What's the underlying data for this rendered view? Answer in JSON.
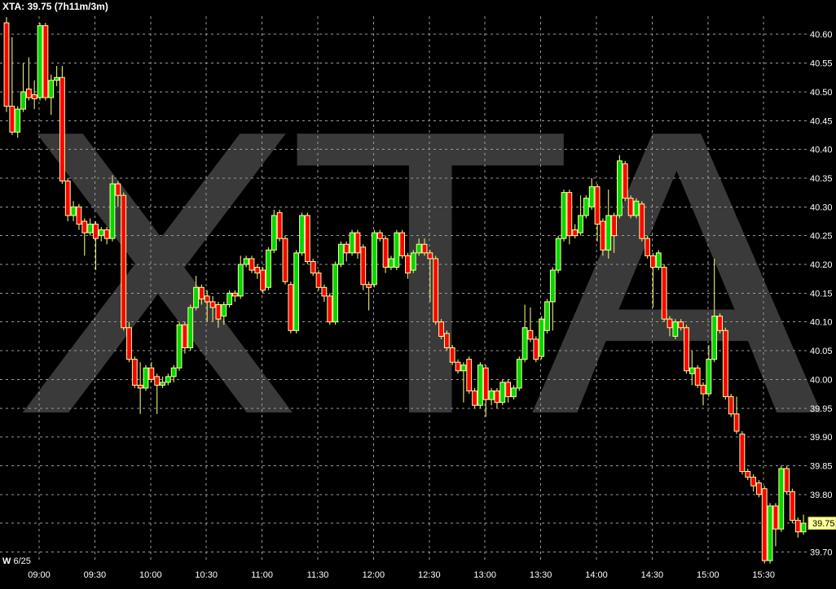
{
  "header": {
    "title": "XTA: 39.75 (7h11m/3m)"
  },
  "footer": {
    "week_label": "W",
    "date_label": "6/25"
  },
  "colors": {
    "background": "#000000",
    "grid": "#9b9b9b",
    "watermark": "#3a3a3a",
    "candle_up": "#00d800",
    "candle_down": "#ff0000",
    "candle_outline": "#ffffa0",
    "wick": "#dcdc6a",
    "axis_text": "#ffffff",
    "price_label_bg": "#ffff9c",
    "price_label_border": "#c8c850",
    "price_label_text": "#000000"
  },
  "chart_data": {
    "type": "candlestick",
    "symbol": "XTA",
    "last_price": "39.75",
    "timeframe": "7h11m/3m",
    "watermark": "XTA",
    "grid": true,
    "legend_position": "none",
    "y_axis": {
      "min": 39.7,
      "max": 40.6,
      "step": 0.05,
      "labels": [
        "40.60",
        "40.55",
        "40.50",
        "40.45",
        "40.40",
        "40.35",
        "40.30",
        "40.25",
        "40.20",
        "40.15",
        "40.10",
        "40.05",
        "40.00",
        "39.95",
        "39.90",
        "39.85",
        "39.80",
        "39.75",
        "39.70"
      ],
      "highlighted_label": "39.75"
    },
    "x_axis": {
      "labels": [
        "09:00",
        "09:30",
        "10:00",
        "10:30",
        "11:00",
        "11:30",
        "12:00",
        "12:30",
        "13:00",
        "13:30",
        "14:00",
        "14:30",
        "15:00",
        "15:30"
      ]
    },
    "candles": [
      [
        40.62,
        40.63,
        40.465,
        40.475
      ],
      [
        40.475,
        40.595,
        40.425,
        40.43
      ],
      [
        40.43,
        40.475,
        40.42,
        40.47
      ],
      [
        40.47,
        40.55,
        40.465,
        40.5
      ],
      [
        40.505,
        40.56,
        40.485,
        40.49
      ],
      [
        40.495,
        40.52,
        40.47,
        40.488
      ],
      [
        40.49,
        40.62,
        40.485,
        40.615
      ],
      [
        40.615,
        40.62,
        40.485,
        40.49
      ],
      [
        40.49,
        40.53,
        40.46,
        40.52
      ],
      [
        40.52,
        40.545,
        40.51,
        40.525
      ],
      [
        40.525,
        40.545,
        40.34,
        40.345
      ],
      [
        40.345,
        40.35,
        40.275,
        40.285
      ],
      [
        40.285,
        40.31,
        40.275,
        40.3
      ],
      [
        40.3,
        40.305,
        40.26,
        40.27
      ],
      [
        40.275,
        40.28,
        40.215,
        40.255
      ],
      [
        40.255,
        40.28,
        40.25,
        40.27
      ],
      [
        40.27,
        40.275,
        40.19,
        40.245
      ],
      [
        40.25,
        40.265,
        40.24,
        40.26
      ],
      [
        40.26,
        40.265,
        40.235,
        40.245
      ],
      [
        40.245,
        40.355,
        40.24,
        40.34
      ],
      [
        40.34,
        40.345,
        40.3,
        40.32
      ],
      [
        40.32,
        40.325,
        40.085,
        40.09
      ],
      [
        40.09,
        40.1,
        40.03,
        40.035
      ],
      [
        40.035,
        40.04,
        39.985,
        39.99
      ],
      [
        39.99,
        40.03,
        39.94,
        39.985
      ],
      [
        39.985,
        40.025,
        39.98,
        40.02
      ],
      [
        40.02,
        40.03,
        39.995,
        40.0
      ],
      [
        40.005,
        40.01,
        39.94,
        39.99
      ],
      [
        39.99,
        40.005,
        39.985,
        39.995
      ],
      [
        39.995,
        40.01,
        39.99,
        40.005
      ],
      [
        40.005,
        40.025,
        39.995,
        40.02
      ],
      [
        40.02,
        40.1,
        40.015,
        40.095
      ],
      [
        40.095,
        40.1,
        40.045,
        40.055
      ],
      [
        40.055,
        40.13,
        40.05,
        40.125
      ],
      [
        40.125,
        40.18,
        40.12,
        40.16
      ],
      [
        40.16,
        40.165,
        40.13,
        40.14
      ],
      [
        40.145,
        40.155,
        40.1,
        40.135
      ],
      [
        40.135,
        40.145,
        40.1,
        40.125
      ],
      [
        40.13,
        40.135,
        40.09,
        40.105
      ],
      [
        40.11,
        40.135,
        40.095,
        40.13
      ],
      [
        40.13,
        40.155,
        40.125,
        40.15
      ],
      [
        40.15,
        40.155,
        40.135,
        40.145
      ],
      [
        40.145,
        40.215,
        40.14,
        40.2
      ],
      [
        40.2,
        40.215,
        40.195,
        40.21
      ],
      [
        40.21,
        40.215,
        40.185,
        40.19
      ],
      [
        40.195,
        40.2,
        40.175,
        40.185
      ],
      [
        40.19,
        40.195,
        40.15,
        40.155
      ],
      [
        40.16,
        40.23,
        40.155,
        40.225
      ],
      [
        40.225,
        40.295,
        40.22,
        40.285
      ],
      [
        40.29,
        40.295,
        40.24,
        40.245
      ],
      [
        40.245,
        40.25,
        40.165,
        40.17
      ],
      [
        40.165,
        40.17,
        40.08,
        40.085
      ],
      [
        40.085,
        40.225,
        40.08,
        40.22
      ],
      [
        40.22,
        40.29,
        40.215,
        40.285
      ],
      [
        40.285,
        40.29,
        40.2,
        40.205
      ],
      [
        40.205,
        40.21,
        40.18,
        40.185
      ],
      [
        40.185,
        40.19,
        40.155,
        40.16
      ],
      [
        40.16,
        40.165,
        40.135,
        40.145
      ],
      [
        40.145,
        40.15,
        40.095,
        40.1
      ],
      [
        40.1,
        40.205,
        40.095,
        40.2
      ],
      [
        40.2,
        40.24,
        40.195,
        40.235
      ],
      [
        40.235,
        40.24,
        40.205,
        40.22
      ],
      [
        40.22,
        40.26,
        40.215,
        40.255
      ],
      [
        40.255,
        40.26,
        40.21,
        40.22
      ],
      [
        40.23,
        40.235,
        40.155,
        40.165
      ],
      [
        40.165,
        40.17,
        40.12,
        40.16
      ],
      [
        40.165,
        40.26,
        40.16,
        40.255
      ],
      [
        40.255,
        40.26,
        40.24,
        40.245
      ],
      [
        40.245,
        40.25,
        40.185,
        40.195
      ],
      [
        40.195,
        40.215,
        40.19,
        40.21
      ],
      [
        40.195,
        40.26,
        40.19,
        40.255
      ],
      [
        40.255,
        40.26,
        40.21,
        40.215
      ],
      [
        40.215,
        40.22,
        40.175,
        40.185
      ],
      [
        40.19,
        40.225,
        40.185,
        40.22
      ],
      [
        40.22,
        40.245,
        40.215,
        40.235
      ],
      [
        40.235,
        40.245,
        40.215,
        40.22
      ],
      [
        40.22,
        40.225,
        40.135,
        40.21
      ],
      [
        40.21,
        40.215,
        40.095,
        40.1
      ],
      [
        40.1,
        40.105,
        40.07,
        40.075
      ],
      [
        40.08,
        40.085,
        40.05,
        40.055
      ],
      [
        40.055,
        40.06,
        40.025,
        40.03
      ],
      [
        40.03,
        40.035,
        40.01,
        40.015
      ],
      [
        40.015,
        40.03,
        39.96,
        40.025
      ],
      [
        40.035,
        40.04,
        39.975,
        39.98
      ],
      [
        39.98,
        39.985,
        39.95,
        39.955
      ],
      [
        39.955,
        40.03,
        39.95,
        40.025
      ],
      [
        40.02,
        40.025,
        39.935,
        39.965
      ],
      [
        39.965,
        39.985,
        39.955,
        39.98
      ],
      [
        39.98,
        39.985,
        39.95,
        39.96
      ],
      [
        39.96,
        40.0,
        39.955,
        39.995
      ],
      [
        39.995,
        40.0,
        39.96,
        39.97
      ],
      [
        39.97,
        39.99,
        39.965,
        39.985
      ],
      [
        39.985,
        40.04,
        39.98,
        40.035
      ],
      [
        40.035,
        40.13,
        40.03,
        40.09
      ],
      [
        40.085,
        40.125,
        40.065,
        40.07
      ],
      [
        40.07,
        40.075,
        40.03,
        40.035
      ],
      [
        40.04,
        40.11,
        40.035,
        40.105
      ],
      [
        40.085,
        40.14,
        40.08,
        40.135
      ],
      [
        40.135,
        40.195,
        40.085,
        40.19
      ],
      [
        40.19,
        40.25,
        40.185,
        40.245
      ],
      [
        40.245,
        40.33,
        40.24,
        40.325
      ],
      [
        40.325,
        40.33,
        40.235,
        40.25
      ],
      [
        40.26,
        40.27,
        40.245,
        40.25
      ],
      [
        40.255,
        40.32,
        40.25,
        40.285
      ],
      [
        40.285,
        40.32,
        40.28,
        40.315
      ],
      [
        40.3,
        40.35,
        40.295,
        40.335
      ],
      [
        40.335,
        40.34,
        40.24,
        40.27
      ],
      [
        40.275,
        40.28,
        40.215,
        40.225
      ],
      [
        40.225,
        40.33,
        40.21,
        40.285
      ],
      [
        40.285,
        40.29,
        40.22,
        40.25
      ],
      [
        40.285,
        40.39,
        40.28,
        40.38
      ],
      [
        40.375,
        40.38,
        40.31,
        40.315
      ],
      [
        40.315,
        40.32,
        40.28,
        40.285
      ],
      [
        40.285,
        40.315,
        40.28,
        40.31
      ],
      [
        40.305,
        40.31,
        40.24,
        40.245
      ],
      [
        40.245,
        40.25,
        40.21,
        40.215
      ],
      [
        40.215,
        40.22,
        40.125,
        40.195
      ],
      [
        40.195,
        40.225,
        40.19,
        40.22
      ],
      [
        40.195,
        40.2,
        40.1,
        40.105
      ],
      [
        40.105,
        40.11,
        40.075,
        40.09
      ],
      [
        40.075,
        40.105,
        40.07,
        40.1
      ],
      [
        40.1,
        40.105,
        40.085,
        40.09
      ],
      [
        40.09,
        40.095,
        40.01,
        40.015
      ],
      [
        40.01,
        40.05,
        39.99,
        40.02
      ],
      [
        40.02,
        40.025,
        39.985,
        39.99
      ],
      [
        39.99,
        39.995,
        39.955,
        39.975
      ],
      [
        39.975,
        40.06,
        39.97,
        40.035
      ],
      [
        40.035,
        40.21,
        40.03,
        40.11
      ],
      [
        40.11,
        40.115,
        40.08,
        40.085
      ],
      [
        40.085,
        40.09,
        39.965,
        39.97
      ],
      [
        39.97,
        39.975,
        39.935,
        39.94
      ],
      [
        39.94,
        39.97,
        39.905,
        39.91
      ],
      [
        39.905,
        39.91,
        39.835,
        39.84
      ],
      [
        39.84,
        39.845,
        39.825,
        39.83
      ],
      [
        39.83,
        39.835,
        39.805,
        39.815
      ],
      [
        39.82,
        39.825,
        39.795,
        39.8
      ],
      [
        39.81,
        39.815,
        39.68,
        39.685
      ],
      [
        39.685,
        39.785,
        39.68,
        39.78
      ],
      [
        39.78,
        39.785,
        39.71,
        39.74
      ],
      [
        39.74,
        39.85,
        39.735,
        39.845
      ],
      [
        39.845,
        39.85,
        39.8,
        39.805
      ],
      [
        39.805,
        39.81,
        39.75,
        39.755
      ],
      [
        39.755,
        39.76,
        39.725,
        39.735
      ],
      [
        39.735,
        39.765,
        39.73,
        39.75
      ]
    ]
  }
}
